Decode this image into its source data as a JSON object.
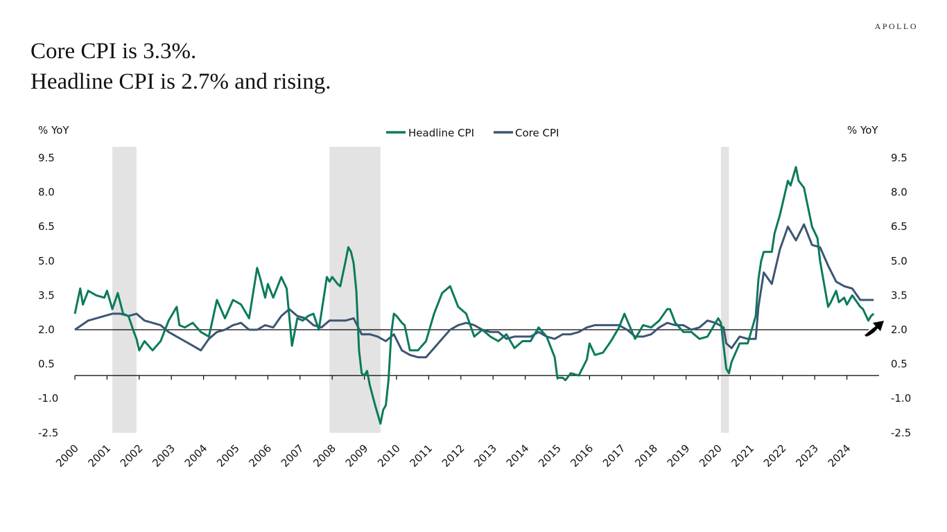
{
  "title_lines": [
    "Core CPI is 3.3%.",
    "Headline CPI is 2.7% and rising."
  ],
  "logo": "APOLLO",
  "chart_data": {
    "type": "line",
    "title": "Core CPI is 3.3%. Headline CPI is 2.7% and rising.",
    "ylabel_left": "% YoY",
    "ylabel_right": "% YoY",
    "ylim": [
      -2.5,
      9.5
    ],
    "yticks": [
      "9.5",
      "8.0",
      "6.5",
      "5.0",
      "3.5",
      "2.0",
      "0.5",
      "-1.0",
      "-2.5"
    ],
    "xlim": [
      "2000-01",
      "2024-12"
    ],
    "xticks": [
      "2000",
      "2001",
      "2002",
      "2003",
      "2004",
      "2005",
      "2006",
      "2007",
      "2008",
      "2009",
      "2010",
      "2011",
      "2012",
      "2013",
      "2014",
      "2015",
      "2016",
      "2017",
      "2018",
      "2019",
      "2020",
      "2021",
      "2022",
      "2023",
      "2024"
    ],
    "reference_line": 2.0,
    "legend_placement": "top-center",
    "grid": false,
    "recessions": [
      [
        "2001-03",
        "2001-11"
      ],
      [
        "2007-12",
        "2009-06"
      ],
      [
        "2020-02",
        "2020-04"
      ]
    ],
    "annotation": "upward-arrow-icon",
    "series": [
      {
        "name": "Headline CPI",
        "color": "#0B7A5C",
        "points": [
          [
            "2000-01",
            2.7
          ],
          [
            "2000-03",
            3.8
          ],
          [
            "2000-04",
            3.1
          ],
          [
            "2000-06",
            3.7
          ],
          [
            "2000-09",
            3.5
          ],
          [
            "2000-12",
            3.4
          ],
          [
            "2001-01",
            3.7
          ],
          [
            "2001-03",
            2.9
          ],
          [
            "2001-05",
            3.6
          ],
          [
            "2001-07",
            2.7
          ],
          [
            "2001-09",
            2.6
          ],
          [
            "2001-11",
            1.9
          ],
          [
            "2001-12",
            1.6
          ],
          [
            "2002-01",
            1.1
          ],
          [
            "2002-03",
            1.5
          ],
          [
            "2002-06",
            1.1
          ],
          [
            "2002-09",
            1.5
          ],
          [
            "2002-12",
            2.4
          ],
          [
            "2003-03",
            3.0
          ],
          [
            "2003-04",
            2.2
          ],
          [
            "2003-06",
            2.1
          ],
          [
            "2003-09",
            2.3
          ],
          [
            "2003-12",
            1.9
          ],
          [
            "2004-03",
            1.7
          ],
          [
            "2004-06",
            3.3
          ],
          [
            "2004-09",
            2.5
          ],
          [
            "2004-12",
            3.3
          ],
          [
            "2005-03",
            3.1
          ],
          [
            "2005-06",
            2.5
          ],
          [
            "2005-09",
            4.7
          ],
          [
            "2005-10",
            4.3
          ],
          [
            "2005-12",
            3.4
          ],
          [
            "2006-01",
            4.0
          ],
          [
            "2006-03",
            3.4
          ],
          [
            "2006-06",
            4.3
          ],
          [
            "2006-08",
            3.8
          ],
          [
            "2006-10",
            1.3
          ],
          [
            "2006-12",
            2.5
          ],
          [
            "2007-02",
            2.4
          ],
          [
            "2007-04",
            2.6
          ],
          [
            "2007-06",
            2.7
          ],
          [
            "2007-08",
            2.0
          ],
          [
            "2007-11",
            4.3
          ],
          [
            "2007-12",
            4.1
          ],
          [
            "2008-01",
            4.3
          ],
          [
            "2008-03",
            4.0
          ],
          [
            "2008-04",
            3.9
          ],
          [
            "2008-06",
            5.0
          ],
          [
            "2008-07",
            5.6
          ],
          [
            "2008-08",
            5.4
          ],
          [
            "2008-09",
            4.9
          ],
          [
            "2008-10",
            3.7
          ],
          [
            "2008-11",
            1.1
          ],
          [
            "2008-12",
            0.1
          ],
          [
            "2009-01",
            0.0
          ],
          [
            "2009-02",
            0.2
          ],
          [
            "2009-03",
            -0.4
          ],
          [
            "2009-05",
            -1.3
          ],
          [
            "2009-07",
            -2.1
          ],
          [
            "2009-08",
            -1.5
          ],
          [
            "2009-09",
            -1.3
          ],
          [
            "2009-10",
            -0.2
          ],
          [
            "2009-11",
            1.8
          ],
          [
            "2009-12",
            2.7
          ],
          [
            "2010-01",
            2.6
          ],
          [
            "2010-03",
            2.3
          ],
          [
            "2010-04",
            2.2
          ],
          [
            "2010-06",
            1.1
          ],
          [
            "2010-09",
            1.1
          ],
          [
            "2010-12",
            1.5
          ],
          [
            "2011-03",
            2.7
          ],
          [
            "2011-06",
            3.6
          ],
          [
            "2011-09",
            3.9
          ],
          [
            "2011-12",
            3.0
          ],
          [
            "2012-03",
            2.7
          ],
          [
            "2012-06",
            1.7
          ],
          [
            "2012-09",
            2.0
          ],
          [
            "2012-12",
            1.7
          ],
          [
            "2013-03",
            1.5
          ],
          [
            "2013-06",
            1.8
          ],
          [
            "2013-09",
            1.2
          ],
          [
            "2013-12",
            1.5
          ],
          [
            "2014-03",
            1.5
          ],
          [
            "2014-06",
            2.1
          ],
          [
            "2014-09",
            1.7
          ],
          [
            "2014-12",
            0.8
          ],
          [
            "2015-01",
            -0.1
          ],
          [
            "2015-03",
            -0.1
          ],
          [
            "2015-04",
            -0.2
          ],
          [
            "2015-06",
            0.1
          ],
          [
            "2015-09",
            0.0
          ],
          [
            "2015-12",
            0.7
          ],
          [
            "2016-01",
            1.4
          ],
          [
            "2016-03",
            0.9
          ],
          [
            "2016-06",
            1.0
          ],
          [
            "2016-09",
            1.5
          ],
          [
            "2016-12",
            2.1
          ],
          [
            "2017-02",
            2.7
          ],
          [
            "2017-06",
            1.6
          ],
          [
            "2017-09",
            2.2
          ],
          [
            "2017-12",
            2.1
          ],
          [
            "2018-03",
            2.4
          ],
          [
            "2018-06",
            2.9
          ],
          [
            "2018-07",
            2.9
          ],
          [
            "2018-09",
            2.3
          ],
          [
            "2018-12",
            1.9
          ],
          [
            "2019-03",
            1.9
          ],
          [
            "2019-06",
            1.6
          ],
          [
            "2019-09",
            1.7
          ],
          [
            "2019-12",
            2.3
          ],
          [
            "2020-01",
            2.5
          ],
          [
            "2020-02",
            2.3
          ],
          [
            "2020-04",
            0.3
          ],
          [
            "2020-05",
            0.1
          ],
          [
            "2020-06",
            0.6
          ],
          [
            "2020-09",
            1.4
          ],
          [
            "2020-12",
            1.4
          ],
          [
            "2021-03",
            2.6
          ],
          [
            "2021-04",
            4.2
          ],
          [
            "2021-05",
            5.0
          ],
          [
            "2021-06",
            5.4
          ],
          [
            "2021-09",
            5.4
          ],
          [
            "2021-10",
            6.2
          ],
          [
            "2021-12",
            7.0
          ],
          [
            "2022-03",
            8.5
          ],
          [
            "2022-04",
            8.3
          ],
          [
            "2022-06",
            9.1
          ],
          [
            "2022-07",
            8.5
          ],
          [
            "2022-09",
            8.2
          ],
          [
            "2022-12",
            6.5
          ],
          [
            "2023-02",
            6.0
          ],
          [
            "2023-03",
            5.0
          ],
          [
            "2023-06",
            3.0
          ],
          [
            "2023-07",
            3.2
          ],
          [
            "2023-09",
            3.7
          ],
          [
            "2023-10",
            3.2
          ],
          [
            "2023-12",
            3.4
          ],
          [
            "2024-01",
            3.1
          ],
          [
            "2024-03",
            3.5
          ],
          [
            "2024-06",
            3.0
          ],
          [
            "2024-07",
            2.9
          ],
          [
            "2024-09",
            2.4
          ],
          [
            "2024-10",
            2.6
          ],
          [
            "2024-11",
            2.7
          ]
        ]
      },
      {
        "name": "Core CPI",
        "color": "#3D5573",
        "points": [
          [
            "2000-01",
            2.0
          ],
          [
            "2000-06",
            2.4
          ],
          [
            "2000-12",
            2.6
          ],
          [
            "2001-03",
            2.7
          ],
          [
            "2001-06",
            2.7
          ],
          [
            "2001-09",
            2.6
          ],
          [
            "2001-12",
            2.7
          ],
          [
            "2002-03",
            2.4
          ],
          [
            "2002-06",
            2.3
          ],
          [
            "2002-09",
            2.2
          ],
          [
            "2002-12",
            1.9
          ],
          [
            "2003-03",
            1.7
          ],
          [
            "2003-06",
            1.5
          ],
          [
            "2003-09",
            1.3
          ],
          [
            "2003-12",
            1.1
          ],
          [
            "2004-03",
            1.6
          ],
          [
            "2004-06",
            1.9
          ],
          [
            "2004-09",
            2.0
          ],
          [
            "2004-12",
            2.2
          ],
          [
            "2005-03",
            2.3
          ],
          [
            "2005-06",
            2.0
          ],
          [
            "2005-09",
            2.0
          ],
          [
            "2005-12",
            2.2
          ],
          [
            "2006-03",
            2.1
          ],
          [
            "2006-06",
            2.6
          ],
          [
            "2006-09",
            2.9
          ],
          [
            "2006-12",
            2.6
          ],
          [
            "2007-03",
            2.5
          ],
          [
            "2007-06",
            2.2
          ],
          [
            "2007-09",
            2.1
          ],
          [
            "2007-12",
            2.4
          ],
          [
            "2008-03",
            2.4
          ],
          [
            "2008-06",
            2.4
          ],
          [
            "2008-09",
            2.5
          ],
          [
            "2008-12",
            1.8
          ],
          [
            "2009-03",
            1.8
          ],
          [
            "2009-06",
            1.7
          ],
          [
            "2009-09",
            1.5
          ],
          [
            "2009-12",
            1.8
          ],
          [
            "2010-03",
            1.1
          ],
          [
            "2010-06",
            0.9
          ],
          [
            "2010-09",
            0.8
          ],
          [
            "2010-12",
            0.8
          ],
          [
            "2011-03",
            1.2
          ],
          [
            "2011-06",
            1.6
          ],
          [
            "2011-09",
            2.0
          ],
          [
            "2011-12",
            2.2
          ],
          [
            "2012-03",
            2.3
          ],
          [
            "2012-06",
            2.2
          ],
          [
            "2012-09",
            2.0
          ],
          [
            "2012-12",
            1.9
          ],
          [
            "2013-03",
            1.9
          ],
          [
            "2013-06",
            1.6
          ],
          [
            "2013-09",
            1.7
          ],
          [
            "2013-12",
            1.7
          ],
          [
            "2014-03",
            1.7
          ],
          [
            "2014-06",
            1.9
          ],
          [
            "2014-09",
            1.7
          ],
          [
            "2014-12",
            1.6
          ],
          [
            "2015-03",
            1.8
          ],
          [
            "2015-06",
            1.8
          ],
          [
            "2015-09",
            1.9
          ],
          [
            "2015-12",
            2.1
          ],
          [
            "2016-03",
            2.2
          ],
          [
            "2016-06",
            2.2
          ],
          [
            "2016-09",
            2.2
          ],
          [
            "2016-12",
            2.2
          ],
          [
            "2017-03",
            2.0
          ],
          [
            "2017-06",
            1.7
          ],
          [
            "2017-09",
            1.7
          ],
          [
            "2017-12",
            1.8
          ],
          [
            "2018-03",
            2.1
          ],
          [
            "2018-06",
            2.3
          ],
          [
            "2018-09",
            2.2
          ],
          [
            "2018-12",
            2.2
          ],
          [
            "2019-03",
            2.0
          ],
          [
            "2019-06",
            2.1
          ],
          [
            "2019-09",
            2.4
          ],
          [
            "2019-12",
            2.3
          ],
          [
            "2020-03",
            2.1
          ],
          [
            "2020-04",
            1.4
          ],
          [
            "2020-06",
            1.2
          ],
          [
            "2020-09",
            1.7
          ],
          [
            "2020-12",
            1.6
          ],
          [
            "2021-03",
            1.6
          ],
          [
            "2021-04",
            3.0
          ],
          [
            "2021-06",
            4.5
          ],
          [
            "2021-09",
            4.0
          ],
          [
            "2021-12",
            5.5
          ],
          [
            "2022-03",
            6.5
          ],
          [
            "2022-06",
            5.9
          ],
          [
            "2022-09",
            6.6
          ],
          [
            "2022-12",
            5.7
          ],
          [
            "2023-03",
            5.6
          ],
          [
            "2023-06",
            4.8
          ],
          [
            "2023-09",
            4.1
          ],
          [
            "2023-12",
            3.9
          ],
          [
            "2024-03",
            3.8
          ],
          [
            "2024-06",
            3.3
          ],
          [
            "2024-09",
            3.3
          ],
          [
            "2024-11",
            3.3
          ]
        ]
      }
    ]
  }
}
